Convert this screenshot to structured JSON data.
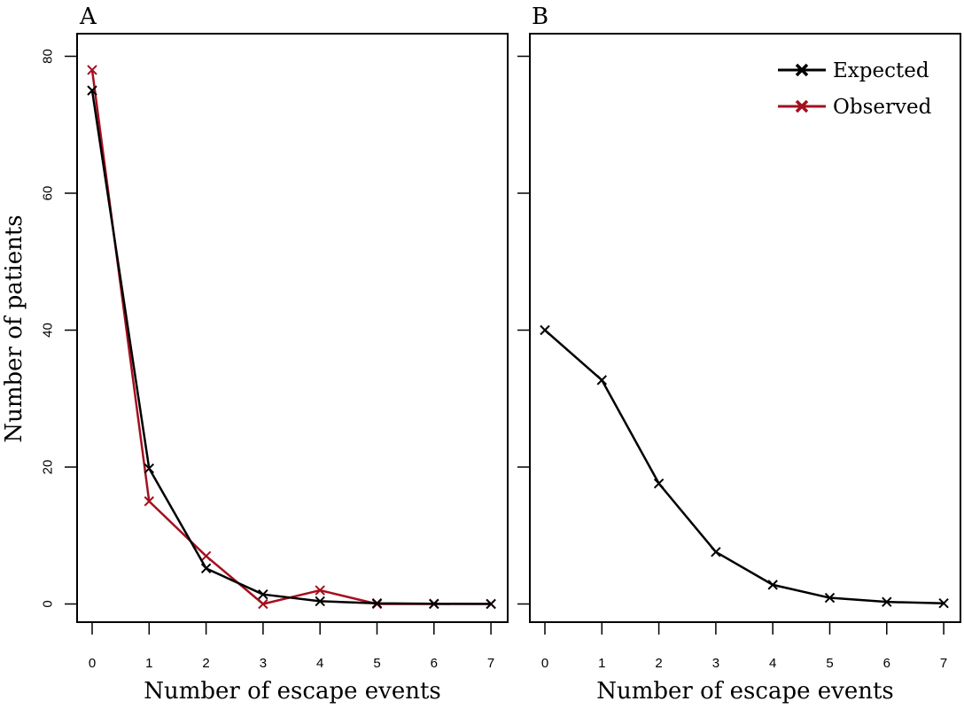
{
  "chart_data": [
    {
      "type": "line",
      "panel_label": "A",
      "xlabel": "Number of escape events",
      "ylabel": "Number of patients",
      "x": [
        0,
        1,
        2,
        3,
        4,
        5,
        6,
        7
      ],
      "xlim": [
        0,
        7
      ],
      "ylim": [
        0,
        80
      ],
      "yticks": [
        0,
        20,
        40,
        60,
        80
      ],
      "legend": false,
      "series": [
        {
          "name": "Observed",
          "color": "#a50f1e",
          "marker": "x",
          "values": [
            78,
            15,
            7,
            0,
            2,
            0,
            0,
            0
          ]
        },
        {
          "name": "Expected",
          "color": "#000000",
          "marker": "x",
          "values": [
            75,
            19.8,
            5.2,
            1.4,
            0.4,
            0.1,
            0.03,
            0.01
          ]
        }
      ]
    },
    {
      "type": "line",
      "panel_label": "B",
      "xlabel": "Number of escape events",
      "x": [
        0,
        1,
        2,
        3,
        4,
        5,
        6,
        7
      ],
      "xlim": [
        0,
        7
      ],
      "ylim": [
        0,
        80
      ],
      "yticks": [
        0,
        20,
        40,
        60,
        80
      ],
      "legend": true,
      "legend_position": "top-right",
      "series": [
        {
          "name": "Expected",
          "color": "#000000",
          "marker": "x",
          "values": [
            40,
            32.7,
            17.6,
            7.6,
            2.8,
            0.9,
            0.3,
            0.1
          ]
        }
      ]
    }
  ],
  "legend": {
    "entries": [
      {
        "label": "Expected",
        "color": "#000000"
      },
      {
        "label": "Observed",
        "color": "#a50f1e"
      }
    ]
  }
}
